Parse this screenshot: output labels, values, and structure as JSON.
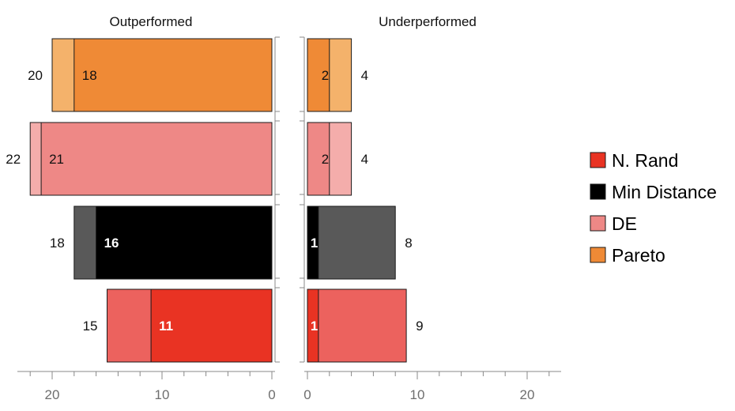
{
  "chart_data": {
    "type": "bar",
    "orientation": "horizontal",
    "panels": [
      {
        "title": "Outperformed",
        "direction": "reversed",
        "xlim": [
          23,
          0
        ],
        "ticks": [
          20,
          10,
          0
        ],
        "tick_labels": [
          "20",
          "10",
          "0"
        ]
      },
      {
        "title": "Underperformed",
        "direction": "normal",
        "xlim": [
          0,
          23
        ],
        "ticks": [
          0,
          10,
          20
        ],
        "tick_labels": [
          "0",
          "10",
          "20"
        ]
      }
    ],
    "categories": [
      "Pareto",
      "DE",
      "Min Distance",
      "N. Rand"
    ],
    "series": [
      {
        "name": "Pareto",
        "color": "#ef8a36",
        "light_color": "#f4b26b",
        "outperformed": {
          "inner": 18,
          "outer": 20,
          "inner_label": "18",
          "outer_label": "20"
        },
        "underperformed": {
          "inner": 2,
          "outer": 4,
          "inner_label": "2",
          "outer_label": "4"
        }
      },
      {
        "name": "DE",
        "color": "#ee8886",
        "light_color": "#f4adab",
        "outperformed": {
          "inner": 21,
          "outer": 22,
          "inner_label": "21",
          "outer_label": "22"
        },
        "underperformed": {
          "inner": 2,
          "outer": 4,
          "inner_label": "2",
          "outer_label": "4"
        }
      },
      {
        "name": "Min Distance",
        "color": "#000000",
        "light_color": "#595959",
        "outperformed": {
          "inner": 16,
          "outer": 18,
          "inner_label": "16",
          "outer_label": "18"
        },
        "underperformed": {
          "inner": 1,
          "outer": 8,
          "inner_label": "1",
          "outer_label": "8"
        }
      },
      {
        "name": "N. Rand",
        "color": "#e93323",
        "light_color": "#ec625e",
        "outperformed": {
          "inner": 11,
          "outer": 15,
          "inner_label": "11",
          "outer_label": "15"
        },
        "underperformed": {
          "inner": 1,
          "outer": 9,
          "inner_label": "1",
          "outer_label": "9"
        }
      }
    ],
    "legend": {
      "position": "right",
      "items": [
        {
          "label": "N. Rand",
          "color": "#e93323"
        },
        {
          "label": "Min Distance",
          "color": "#000000"
        },
        {
          "label": "DE",
          "color": "#ee8886"
        },
        {
          "label": "Pareto",
          "color": "#ef8a36"
        }
      ]
    },
    "grid": false
  }
}
